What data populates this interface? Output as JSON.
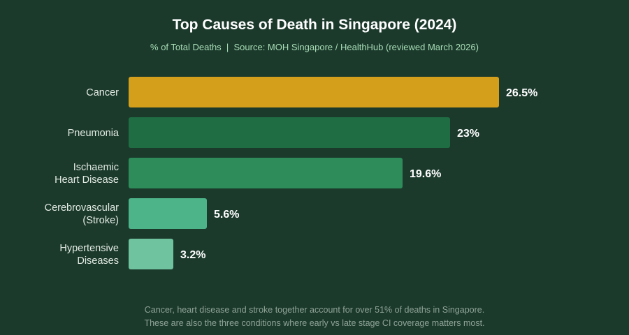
{
  "chart_data": {
    "type": "bar",
    "orientation": "horizontal",
    "title": "Top Causes of Death in Singapore (2024)",
    "subtitle": "% of Total Deaths  |  Source: MOH Singapore / HealthHub (reviewed March 2026)",
    "categories": [
      [
        "Cancer"
      ],
      [
        "Pneumonia"
      ],
      [
        "Ischaemic",
        "Heart Disease"
      ],
      [
        "Cerebrovascular",
        "(Stroke)"
      ],
      [
        "Hypertensive",
        "Diseases"
      ]
    ],
    "values": [
      26.5,
      23,
      19.6,
      5.6,
      3.2
    ],
    "value_labels": [
      "26.5%",
      "23%",
      "19.6%",
      "5.6%",
      "3.2%"
    ],
    "bar_colors": [
      "#d4a01c",
      "#1f6e43",
      "#2d8c59",
      "#4db389",
      "#6fc39e"
    ],
    "xlim": [
      0,
      26.5
    ],
    "grid": false,
    "legend": "none",
    "footnote": [
      "Cancer, heart disease and stroke together account for over 51% of deaths in Singapore.",
      "These are also the three conditions where early vs late stage CI coverage matters most."
    ]
  }
}
